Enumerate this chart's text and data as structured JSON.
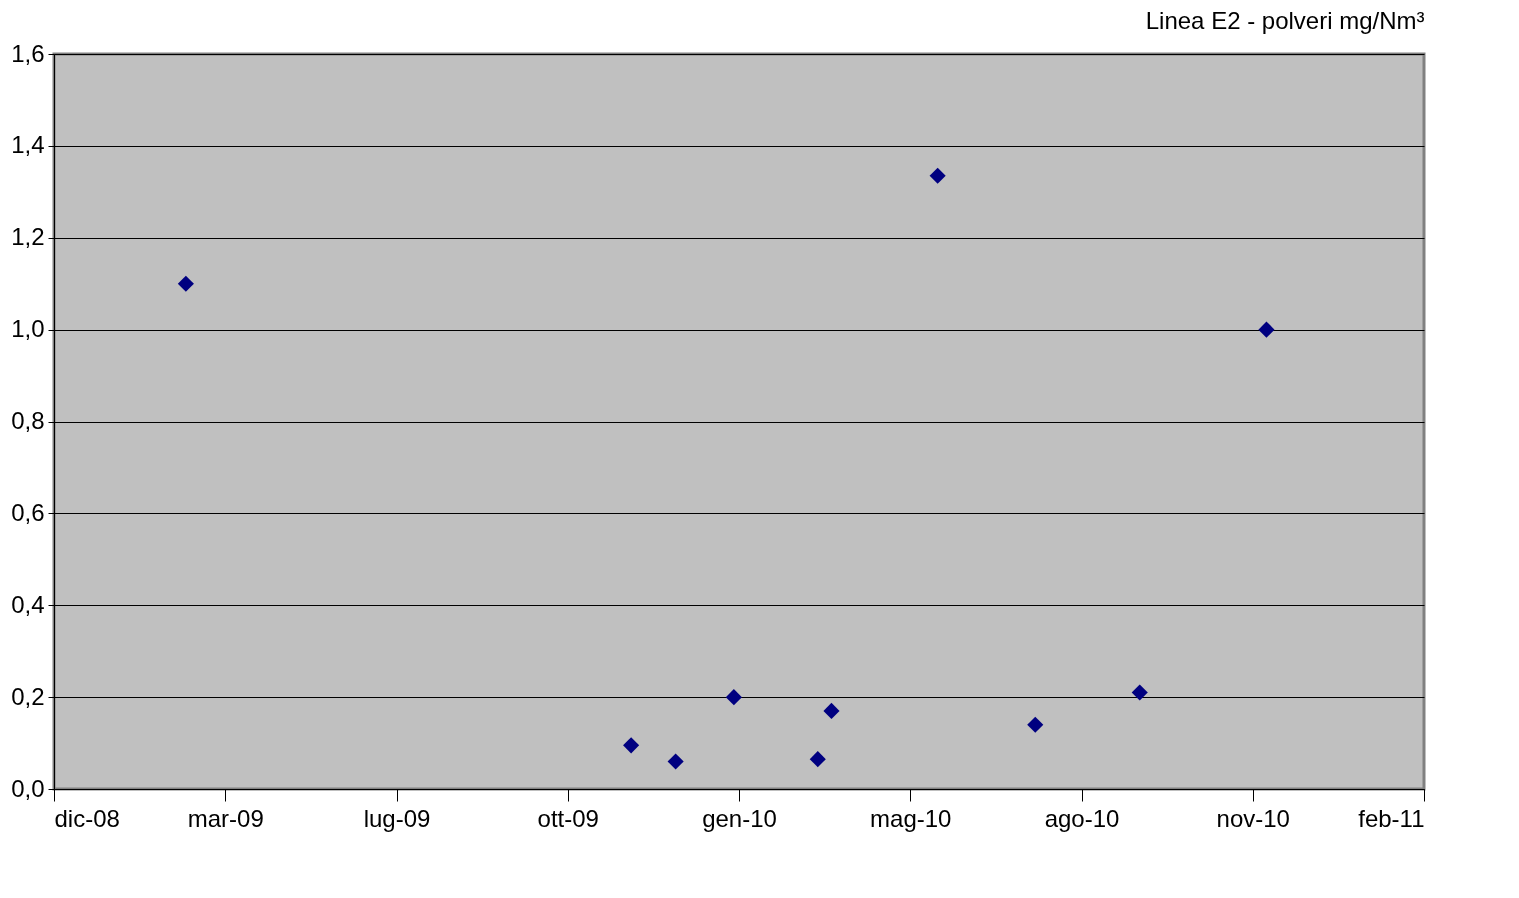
{
  "chart_data": {
    "type": "scatter",
    "title": "Linea E2 - polveri mg/Nm³",
    "x": [
      "2009-03-07",
      "2009-11-22",
      "2009-12-18",
      "2010-01-21",
      "2010-03-11",
      "2010-03-19",
      "2010-05-20",
      "2010-07-16",
      "2010-09-15",
      "2010-11-28"
    ],
    "series": [
      {
        "color": "#000080",
        "values": [
          1.1,
          0.095,
          0.06,
          0.2,
          0.065,
          0.17,
          1.335,
          0.14,
          0.21,
          1.0
        ]
      }
    ],
    "xlim": [
      "2008-12-20",
      "2011-02-28"
    ],
    "xticks": [
      {
        "value": "2008-12-20",
        "label": "dic-08"
      },
      {
        "value": "2009-03-30",
        "label": "mar-09"
      },
      {
        "value": "2009-07-08",
        "label": "lug-09"
      },
      {
        "value": "2009-10-16",
        "label": "ott-09"
      },
      {
        "value": "2010-01-24",
        "label": "gen-10"
      },
      {
        "value": "2010-05-04",
        "label": "mag-10"
      },
      {
        "value": "2010-08-12",
        "label": "ago-10"
      },
      {
        "value": "2010-11-20",
        "label": "nov-10"
      },
      {
        "value": "2011-02-28",
        "label": "feb-11"
      }
    ],
    "ylim": [
      0,
      1.6
    ],
    "yticks": [
      {
        "value": 0,
        "label": "0,0"
      },
      {
        "value": 0.2,
        "label": "0,2"
      },
      {
        "value": 0.4,
        "label": "0,4"
      },
      {
        "value": 0.6,
        "label": "0,6"
      },
      {
        "value": 0.8,
        "label": "0,8"
      },
      {
        "value": 1.0,
        "label": "1,0"
      },
      {
        "value": 1.2,
        "label": "1,2"
      },
      {
        "value": 1.4,
        "label": "1,4"
      },
      {
        "value": 1.6,
        "label": "1,6"
      }
    ],
    "grid": "y",
    "marker": "diamond"
  }
}
